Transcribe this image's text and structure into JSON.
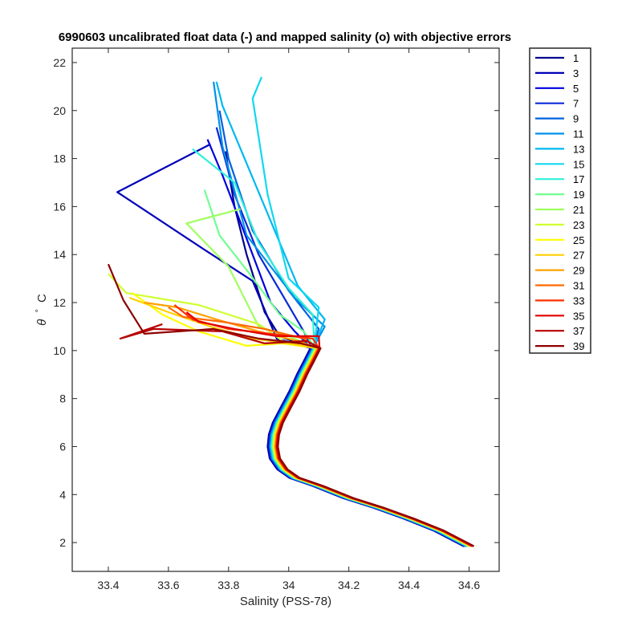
{
  "chart_data": {
    "type": "line",
    "title": "6990603 uncalibrated float data (-) and mapped salinity (o) with objective errors",
    "xlabel": "Salinity (PSS-78)",
    "ylabel_symbol": "θ",
    "ylabel_degree": "°",
    "ylabel_unit": "C",
    "xlim": [
      33.28,
      34.7
    ],
    "ylim": [
      0.8,
      22.6
    ],
    "xticks": [
      33.4,
      33.6,
      33.8,
      34,
      34.2,
      34.4,
      34.6
    ],
    "xtick_labels": [
      "33.4",
      "33.6",
      "33.8",
      "34",
      "34.2",
      "34.4",
      "34.6"
    ],
    "yticks": [
      2,
      4,
      6,
      8,
      10,
      12,
      14,
      16,
      18,
      20,
      22
    ],
    "ytick_labels": [
      "2",
      "4",
      "6",
      "8",
      "10",
      "12",
      "14",
      "16",
      "18",
      "20",
      "22"
    ],
    "grid": false,
    "legend_position": "outside-right-top",
    "deep_profile": [
      [
        34.6,
        1.85
      ],
      [
        34.5,
        2.5
      ],
      [
        34.4,
        3.0
      ],
      [
        34.3,
        3.45
      ],
      [
        34.2,
        3.85
      ],
      [
        34.1,
        4.35
      ],
      [
        34.02,
        4.7
      ],
      [
        33.98,
        5.05
      ],
      [
        33.955,
        5.5
      ],
      [
        33.948,
        6.0
      ],
      [
        33.952,
        6.5
      ],
      [
        33.965,
        7.0
      ],
      [
        33.99,
        7.6
      ],
      [
        34.02,
        8.3
      ],
      [
        34.045,
        9.0
      ],
      [
        34.07,
        9.6
      ],
      [
        34.09,
        10.1
      ]
    ],
    "series": [
      {
        "name": "1",
        "color": "#00008f",
        "upper": [
          [
            33.97,
            10.6
          ],
          [
            33.92,
            11.6
          ],
          [
            33.86,
            14.0
          ],
          [
            33.82,
            16.0
          ],
          [
            33.8,
            17.5
          ],
          [
            33.79,
            18.3
          ]
        ]
      },
      {
        "name": "3",
        "color": "#0000b8",
        "upper": [
          [
            33.96,
            10.5
          ],
          [
            33.88,
            12.9
          ],
          [
            33.72,
            14.2
          ],
          [
            33.43,
            16.6
          ],
          [
            33.74,
            18.6
          ]
        ]
      },
      {
        "name": "5",
        "color": "#0000e0",
        "upper": [
          [
            34.02,
            10.8
          ],
          [
            33.94,
            12.0
          ],
          [
            33.85,
            15.0
          ],
          [
            33.78,
            17.3
          ],
          [
            33.73,
            18.8
          ]
        ]
      },
      {
        "name": "7",
        "color": "#0a2ad6",
        "upper": [
          [
            34.05,
            10.8
          ],
          [
            33.98,
            12.3
          ],
          [
            33.9,
            14.0
          ],
          [
            33.82,
            16.5
          ],
          [
            33.76,
            19.3
          ]
        ]
      },
      {
        "name": "9",
        "color": "#0060e0",
        "upper": [
          [
            34.1,
            10.9
          ],
          [
            34.0,
            12.5
          ],
          [
            33.88,
            15.0
          ],
          [
            33.8,
            18.0
          ],
          [
            33.77,
            20.0
          ]
        ]
      },
      {
        "name": "11",
        "color": "#0090e8",
        "upper": [
          [
            34.12,
            11.0
          ],
          [
            34.02,
            12.2
          ],
          [
            33.86,
            14.8
          ],
          [
            33.78,
            18.5
          ],
          [
            33.75,
            21.2
          ]
        ]
      },
      {
        "name": "13",
        "color": "#00b8f0",
        "upper": [
          [
            34.12,
            11.3
          ],
          [
            34.03,
            12.7
          ],
          [
            33.92,
            16.0
          ],
          [
            33.78,
            20.2
          ],
          [
            33.76,
            21.2
          ]
        ]
      },
      {
        "name": "15",
        "color": "#10d8f0",
        "upper": [
          [
            34.1,
            11.8
          ],
          [
            34.0,
            13.0
          ],
          [
            33.93,
            16.5
          ],
          [
            33.88,
            20.5
          ],
          [
            33.91,
            21.4
          ]
        ]
      },
      {
        "name": "17",
        "color": "#30f0d8",
        "upper": [
          [
            34.08,
            11.5
          ],
          [
            34.0,
            12.6
          ],
          [
            33.9,
            14.5
          ],
          [
            33.82,
            17.0
          ],
          [
            33.68,
            18.4
          ]
        ]
      },
      {
        "name": "19",
        "color": "#70ff90",
        "upper": [
          [
            34.05,
            10.8
          ],
          [
            33.97,
            11.5
          ],
          [
            33.87,
            13.2
          ],
          [
            33.77,
            14.8
          ],
          [
            33.72,
            16.7
          ]
        ]
      },
      {
        "name": "21",
        "color": "#a0ff60",
        "upper": [
          [
            34.0,
            10.6
          ],
          [
            33.9,
            11.0
          ],
          [
            33.8,
            13.5
          ],
          [
            33.66,
            15.3
          ],
          [
            33.84,
            15.9
          ]
        ]
      },
      {
        "name": "23",
        "color": "#d0ff30",
        "upper": [
          [
            33.98,
            10.4
          ],
          [
            33.9,
            11.1
          ],
          [
            33.7,
            11.9
          ],
          [
            33.46,
            12.4
          ],
          [
            33.4,
            13.2
          ]
        ]
      },
      {
        "name": "25",
        "color": "#ffff00",
        "upper": [
          [
            33.98,
            10.3
          ],
          [
            33.86,
            10.2
          ],
          [
            33.7,
            10.8
          ],
          [
            33.58,
            11.5
          ],
          [
            33.48,
            12.4
          ]
        ]
      },
      {
        "name": "27",
        "color": "#ffd000",
        "upper": [
          [
            34.0,
            10.3
          ],
          [
            33.88,
            10.5
          ],
          [
            33.74,
            11.0
          ],
          [
            33.6,
            11.6
          ],
          [
            33.47,
            12.2
          ]
        ]
      },
      {
        "name": "29",
        "color": "#ffa000",
        "upper": [
          [
            34.03,
            10.4
          ],
          [
            33.9,
            10.8
          ],
          [
            33.76,
            11.3
          ],
          [
            33.63,
            11.8
          ],
          [
            33.52,
            12.0
          ]
        ]
      },
      {
        "name": "31",
        "color": "#ff6a00",
        "upper": [
          [
            34.05,
            10.5
          ],
          [
            33.92,
            10.9
          ],
          [
            33.78,
            11.2
          ],
          [
            33.65,
            11.4
          ],
          [
            33.6,
            11.8
          ]
        ]
      },
      {
        "name": "33",
        "color": "#ff3000",
        "upper": [
          [
            34.08,
            10.5
          ],
          [
            33.94,
            10.7
          ],
          [
            33.8,
            10.9
          ],
          [
            33.68,
            11.3
          ],
          [
            33.62,
            11.9
          ]
        ]
      },
      {
        "name": "35",
        "color": "#e00000",
        "upper": [
          [
            34.1,
            10.6
          ],
          [
            33.96,
            10.6
          ],
          [
            33.82,
            10.9
          ],
          [
            33.7,
            11.2
          ],
          [
            33.66,
            11.6
          ]
        ]
      },
      {
        "name": "37",
        "color": "#b80000",
        "upper": [
          [
            34.06,
            10.4
          ],
          [
            33.92,
            10.3
          ],
          [
            33.78,
            10.8
          ],
          [
            33.55,
            10.9
          ],
          [
            33.44,
            10.5
          ],
          [
            33.58,
            11.1
          ]
        ]
      },
      {
        "name": "39",
        "color": "#8f0000",
        "upper": [
          [
            34.04,
            10.3
          ],
          [
            33.9,
            10.5
          ],
          [
            33.75,
            10.9
          ],
          [
            33.52,
            10.7
          ],
          [
            33.45,
            12.1
          ],
          [
            33.4,
            13.6
          ]
        ]
      }
    ]
  }
}
